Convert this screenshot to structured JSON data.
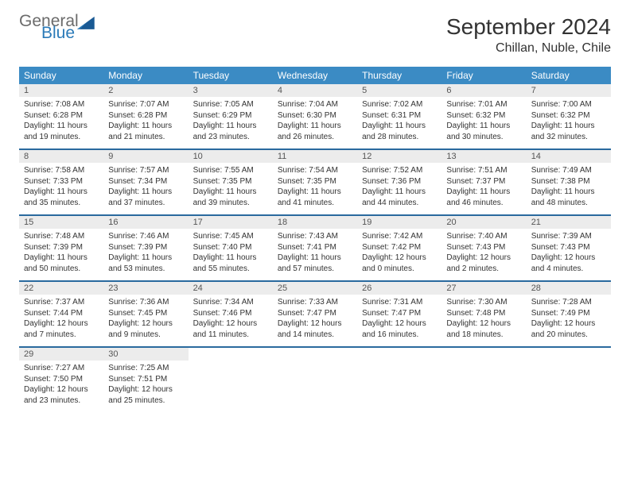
{
  "logo": {
    "general": "General",
    "blue": "Blue"
  },
  "header": {
    "month_title": "September 2024",
    "location": "Chillan, Nuble, Chile"
  },
  "colors": {
    "header_bg": "#3b8bc4",
    "divider": "#2a6a9e",
    "daynum_bg": "#ececec",
    "logo_gray": "#6b6b6b",
    "logo_blue": "#2a7ab8"
  },
  "day_labels": [
    "Sunday",
    "Monday",
    "Tuesday",
    "Wednesday",
    "Thursday",
    "Friday",
    "Saturday"
  ],
  "weeks": [
    [
      {
        "num": "1",
        "sunrise": "Sunrise: 7:08 AM",
        "sunset": "Sunset: 6:28 PM",
        "daylight1": "Daylight: 11 hours",
        "daylight2": "and 19 minutes."
      },
      {
        "num": "2",
        "sunrise": "Sunrise: 7:07 AM",
        "sunset": "Sunset: 6:28 PM",
        "daylight1": "Daylight: 11 hours",
        "daylight2": "and 21 minutes."
      },
      {
        "num": "3",
        "sunrise": "Sunrise: 7:05 AM",
        "sunset": "Sunset: 6:29 PM",
        "daylight1": "Daylight: 11 hours",
        "daylight2": "and 23 minutes."
      },
      {
        "num": "4",
        "sunrise": "Sunrise: 7:04 AM",
        "sunset": "Sunset: 6:30 PM",
        "daylight1": "Daylight: 11 hours",
        "daylight2": "and 26 minutes."
      },
      {
        "num": "5",
        "sunrise": "Sunrise: 7:02 AM",
        "sunset": "Sunset: 6:31 PM",
        "daylight1": "Daylight: 11 hours",
        "daylight2": "and 28 minutes."
      },
      {
        "num": "6",
        "sunrise": "Sunrise: 7:01 AM",
        "sunset": "Sunset: 6:32 PM",
        "daylight1": "Daylight: 11 hours",
        "daylight2": "and 30 minutes."
      },
      {
        "num": "7",
        "sunrise": "Sunrise: 7:00 AM",
        "sunset": "Sunset: 6:32 PM",
        "daylight1": "Daylight: 11 hours",
        "daylight2": "and 32 minutes."
      }
    ],
    [
      {
        "num": "8",
        "sunrise": "Sunrise: 7:58 AM",
        "sunset": "Sunset: 7:33 PM",
        "daylight1": "Daylight: 11 hours",
        "daylight2": "and 35 minutes."
      },
      {
        "num": "9",
        "sunrise": "Sunrise: 7:57 AM",
        "sunset": "Sunset: 7:34 PM",
        "daylight1": "Daylight: 11 hours",
        "daylight2": "and 37 minutes."
      },
      {
        "num": "10",
        "sunrise": "Sunrise: 7:55 AM",
        "sunset": "Sunset: 7:35 PM",
        "daylight1": "Daylight: 11 hours",
        "daylight2": "and 39 minutes."
      },
      {
        "num": "11",
        "sunrise": "Sunrise: 7:54 AM",
        "sunset": "Sunset: 7:35 PM",
        "daylight1": "Daylight: 11 hours",
        "daylight2": "and 41 minutes."
      },
      {
        "num": "12",
        "sunrise": "Sunrise: 7:52 AM",
        "sunset": "Sunset: 7:36 PM",
        "daylight1": "Daylight: 11 hours",
        "daylight2": "and 44 minutes."
      },
      {
        "num": "13",
        "sunrise": "Sunrise: 7:51 AM",
        "sunset": "Sunset: 7:37 PM",
        "daylight1": "Daylight: 11 hours",
        "daylight2": "and 46 minutes."
      },
      {
        "num": "14",
        "sunrise": "Sunrise: 7:49 AM",
        "sunset": "Sunset: 7:38 PM",
        "daylight1": "Daylight: 11 hours",
        "daylight2": "and 48 minutes."
      }
    ],
    [
      {
        "num": "15",
        "sunrise": "Sunrise: 7:48 AM",
        "sunset": "Sunset: 7:39 PM",
        "daylight1": "Daylight: 11 hours",
        "daylight2": "and 50 minutes."
      },
      {
        "num": "16",
        "sunrise": "Sunrise: 7:46 AM",
        "sunset": "Sunset: 7:39 PM",
        "daylight1": "Daylight: 11 hours",
        "daylight2": "and 53 minutes."
      },
      {
        "num": "17",
        "sunrise": "Sunrise: 7:45 AM",
        "sunset": "Sunset: 7:40 PM",
        "daylight1": "Daylight: 11 hours",
        "daylight2": "and 55 minutes."
      },
      {
        "num": "18",
        "sunrise": "Sunrise: 7:43 AM",
        "sunset": "Sunset: 7:41 PM",
        "daylight1": "Daylight: 11 hours",
        "daylight2": "and 57 minutes."
      },
      {
        "num": "19",
        "sunrise": "Sunrise: 7:42 AM",
        "sunset": "Sunset: 7:42 PM",
        "daylight1": "Daylight: 12 hours",
        "daylight2": "and 0 minutes."
      },
      {
        "num": "20",
        "sunrise": "Sunrise: 7:40 AM",
        "sunset": "Sunset: 7:43 PM",
        "daylight1": "Daylight: 12 hours",
        "daylight2": "and 2 minutes."
      },
      {
        "num": "21",
        "sunrise": "Sunrise: 7:39 AM",
        "sunset": "Sunset: 7:43 PM",
        "daylight1": "Daylight: 12 hours",
        "daylight2": "and 4 minutes."
      }
    ],
    [
      {
        "num": "22",
        "sunrise": "Sunrise: 7:37 AM",
        "sunset": "Sunset: 7:44 PM",
        "daylight1": "Daylight: 12 hours",
        "daylight2": "and 7 minutes."
      },
      {
        "num": "23",
        "sunrise": "Sunrise: 7:36 AM",
        "sunset": "Sunset: 7:45 PM",
        "daylight1": "Daylight: 12 hours",
        "daylight2": "and 9 minutes."
      },
      {
        "num": "24",
        "sunrise": "Sunrise: 7:34 AM",
        "sunset": "Sunset: 7:46 PM",
        "daylight1": "Daylight: 12 hours",
        "daylight2": "and 11 minutes."
      },
      {
        "num": "25",
        "sunrise": "Sunrise: 7:33 AM",
        "sunset": "Sunset: 7:47 PM",
        "daylight1": "Daylight: 12 hours",
        "daylight2": "and 14 minutes."
      },
      {
        "num": "26",
        "sunrise": "Sunrise: 7:31 AM",
        "sunset": "Sunset: 7:47 PM",
        "daylight1": "Daylight: 12 hours",
        "daylight2": "and 16 minutes."
      },
      {
        "num": "27",
        "sunrise": "Sunrise: 7:30 AM",
        "sunset": "Sunset: 7:48 PM",
        "daylight1": "Daylight: 12 hours",
        "daylight2": "and 18 minutes."
      },
      {
        "num": "28",
        "sunrise": "Sunrise: 7:28 AM",
        "sunset": "Sunset: 7:49 PM",
        "daylight1": "Daylight: 12 hours",
        "daylight2": "and 20 minutes."
      }
    ],
    [
      {
        "num": "29",
        "sunrise": "Sunrise: 7:27 AM",
        "sunset": "Sunset: 7:50 PM",
        "daylight1": "Daylight: 12 hours",
        "daylight2": "and 23 minutes."
      },
      {
        "num": "30",
        "sunrise": "Sunrise: 7:25 AM",
        "sunset": "Sunset: 7:51 PM",
        "daylight1": "Daylight: 12 hours",
        "daylight2": "and 25 minutes."
      },
      null,
      null,
      null,
      null,
      null
    ]
  ]
}
